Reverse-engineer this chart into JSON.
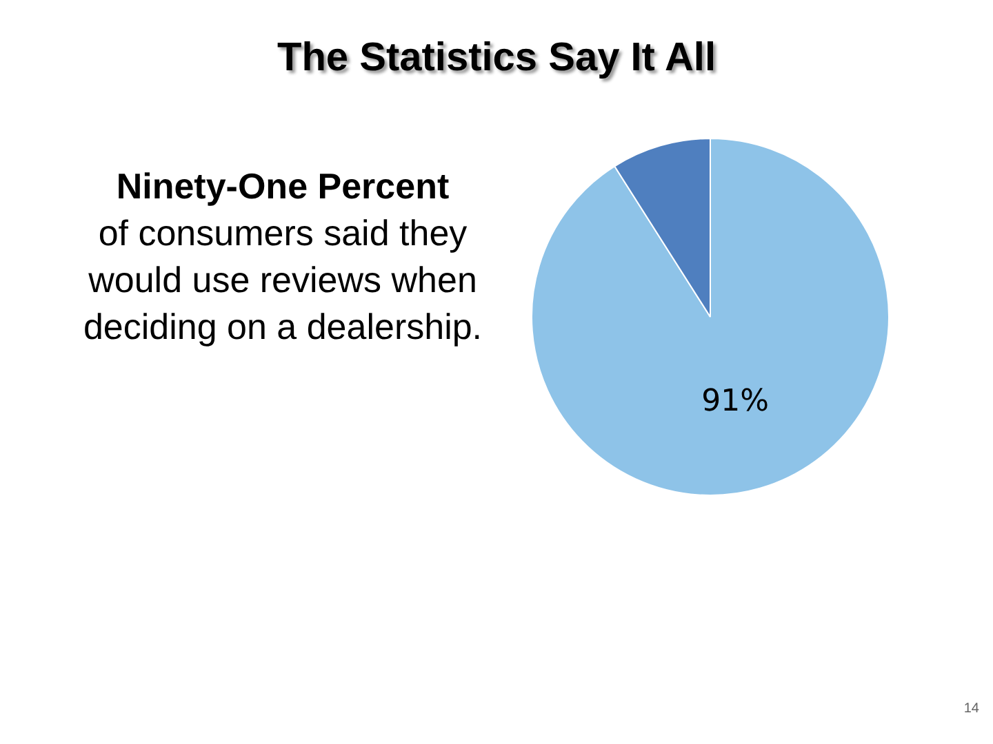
{
  "chart_data": {
    "type": "pie",
    "title": "The Statistics Say It All",
    "categories": [
      null,
      null
    ],
    "values": [
      91,
      9
    ],
    "colors": [
      "#8ec3e8",
      "#4f7fbf"
    ],
    "value_labels": [
      "91%",
      null
    ],
    "annotations": [
      "Ninety-One Percent",
      "of consumers said they would use reviews when deciding on a dealership.",
      "14"
    ]
  }
}
